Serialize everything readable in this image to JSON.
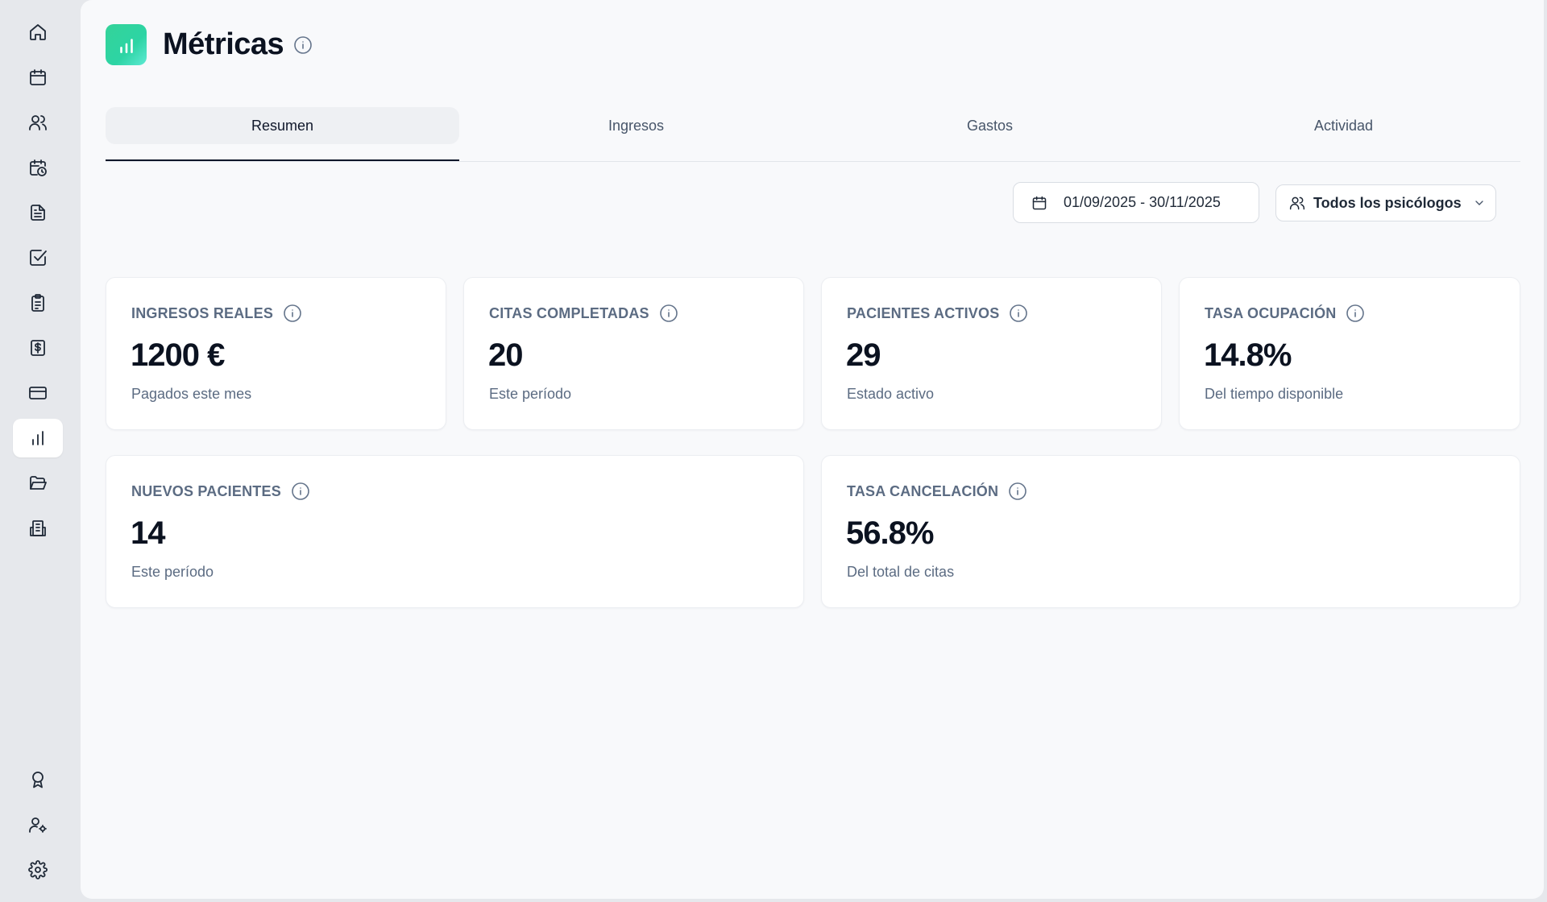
{
  "sidebar": {
    "top_items": [
      {
        "icon": "home-icon"
      },
      {
        "icon": "calendar-icon"
      },
      {
        "icon": "users-icon"
      },
      {
        "icon": "calendar-clock-icon"
      },
      {
        "icon": "document-icon"
      },
      {
        "icon": "checkbox-icon"
      },
      {
        "icon": "clipboard-icon"
      },
      {
        "icon": "dollar-receipt-icon"
      },
      {
        "icon": "credit-card-icon"
      },
      {
        "icon": "bar-chart-icon",
        "active": true
      },
      {
        "icon": "folder-open-icon"
      },
      {
        "icon": "building-icon"
      }
    ],
    "bottom_items": [
      {
        "icon": "award-icon"
      },
      {
        "icon": "user-cog-icon"
      },
      {
        "icon": "settings-icon"
      }
    ]
  },
  "header": {
    "title": "Métricas",
    "accent_color": "#34d399"
  },
  "tabs": [
    {
      "label": "Resumen",
      "active": true
    },
    {
      "label": "Ingresos"
    },
    {
      "label": "Gastos"
    },
    {
      "label": "Actividad"
    }
  ],
  "filters": {
    "date_range": "01/09/2025 - 30/11/2025",
    "psychologist": "Todos los psicólogos"
  },
  "cards": [
    {
      "label": "INGRESOS REALES",
      "value": "1200 €",
      "sub": "Pagados este mes"
    },
    {
      "label": "CITAS COMPLETADAS",
      "value": "20",
      "sub": "Este período"
    },
    {
      "label": "PACIENTES ACTIVOS",
      "value": "29",
      "sub": "Estado activo"
    },
    {
      "label": "TASA OCUPACIÓN",
      "value": "14.8%",
      "sub": "Del tiempo disponible"
    },
    {
      "label": "NUEVOS PACIENTES",
      "value": "14",
      "sub": "Este período"
    },
    {
      "label": "TASA CANCELACIÓN",
      "value": "56.8%",
      "sub": "Del total de citas"
    }
  ]
}
